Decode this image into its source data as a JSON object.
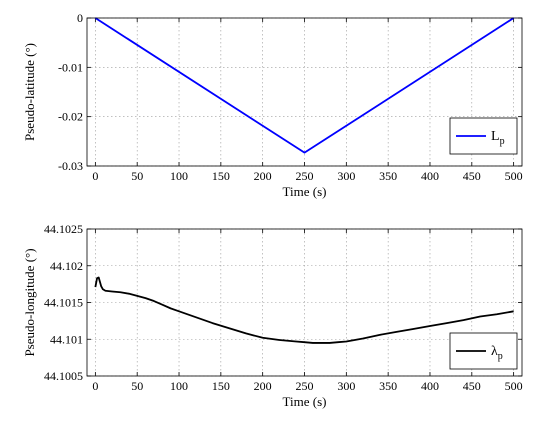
{
  "chart_data": [
    {
      "type": "line",
      "xlabel": "Time (s)",
      "ylabel": "Pseudo-latitude (°)",
      "xlim": [
        -10,
        510
      ],
      "ylim": [
        -0.03,
        0
      ],
      "xticks": [
        "0",
        "50",
        "100",
        "150",
        "200",
        "250",
        "300",
        "350",
        "400",
        "450",
        "500"
      ],
      "yticks": [
        "0",
        "-0.01",
        "-0.02",
        "-0.03"
      ],
      "grid": true,
      "legend_position": "bottom-right",
      "series": [
        {
          "name": "Lp",
          "name_main": "L",
          "name_sub": "p",
          "color": "#0000ff",
          "x": [
            0,
            250,
            500
          ],
          "y": [
            0,
            -0.0273,
            0
          ]
        }
      ]
    },
    {
      "type": "line",
      "xlabel": "Time (s)",
      "ylabel": "Pseudo-longitude (°)",
      "xlim": [
        -10,
        510
      ],
      "ylim": [
        44.1005,
        44.1025
      ],
      "xticks": [
        "0",
        "50",
        "100",
        "150",
        "200",
        "250",
        "300",
        "350",
        "400",
        "450",
        "500"
      ],
      "yticks": [
        "44.1025",
        "44.102",
        "44.1015",
        "44.101",
        "44.1005"
      ],
      "grid": true,
      "legend_position": "bottom-right",
      "series": [
        {
          "name": "λp",
          "name_main": "λ",
          "name_sub": "p",
          "color": "#000000",
          "x": [
            0,
            2,
            4,
            5,
            7,
            9,
            12,
            20,
            30,
            40,
            50,
            60,
            70,
            80,
            90,
            100,
            120,
            140,
            160,
            180,
            200,
            220,
            240,
            250,
            260,
            270,
            280,
            290,
            300,
            320,
            340,
            360,
            380,
            400,
            420,
            440,
            460,
            480,
            500
          ],
          "y": [
            44.10171,
            44.10183,
            44.10184,
            44.1018,
            44.10172,
            44.10168,
            44.10166,
            44.10165,
            44.10164,
            44.10162,
            44.10159,
            44.10156,
            44.10152,
            44.10147,
            44.10142,
            44.10138,
            44.1013,
            44.10122,
            44.10115,
            44.10108,
            44.10102,
            44.10099,
            44.10097,
            44.10096,
            44.10095,
            44.10095,
            44.10095,
            44.10096,
            44.10097,
            44.10101,
            44.10106,
            44.1011,
            44.10114,
            44.10118,
            44.10122,
            44.10126,
            44.10131,
            44.10134,
            44.10138
          ]
        }
      ]
    }
  ]
}
